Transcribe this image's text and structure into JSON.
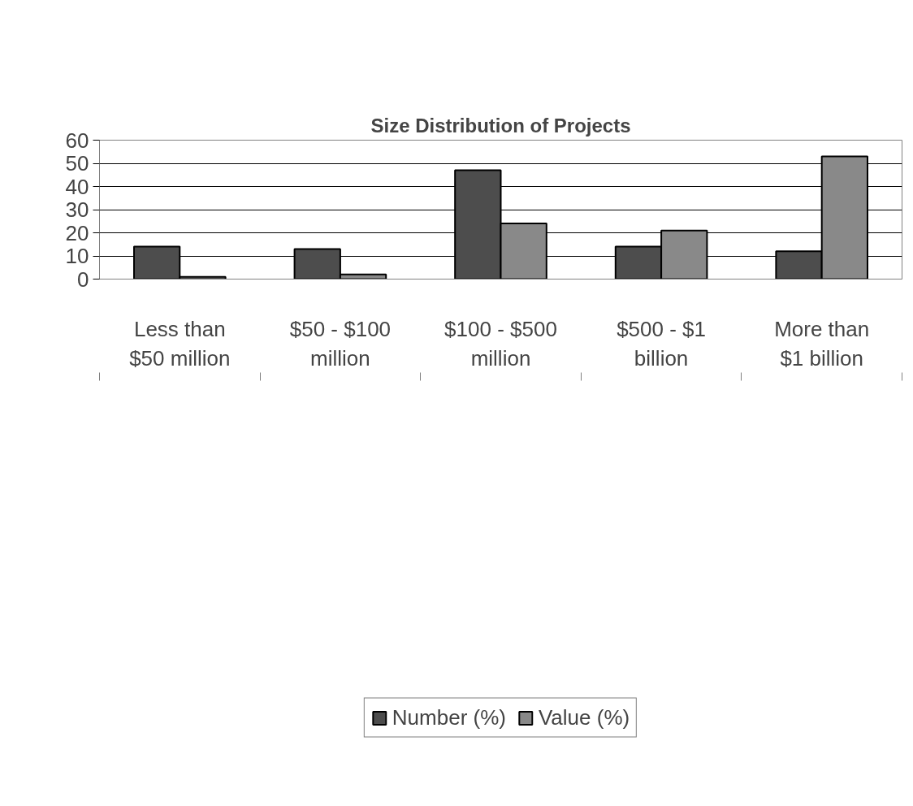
{
  "chart_data": {
    "type": "bar",
    "title": "Size Distribution of Projects",
    "categories": [
      "Less than $50 million",
      "$50 - $100 million",
      "$100 - $500 million",
      "$500 - $1 billion",
      "More than $1 billion"
    ],
    "series": [
      {
        "name": "Number (%)",
        "color": "#4d4d4d",
        "values": [
          14,
          13,
          47,
          14,
          12
        ]
      },
      {
        "name": "Value (%)",
        "color": "#898989",
        "values": [
          1,
          2,
          24,
          21,
          53
        ]
      }
    ],
    "ylim": [
      0,
      60
    ],
    "yticks": [
      0,
      10,
      20,
      30,
      40,
      50,
      60
    ],
    "grid": "y",
    "legend": "bottom"
  }
}
